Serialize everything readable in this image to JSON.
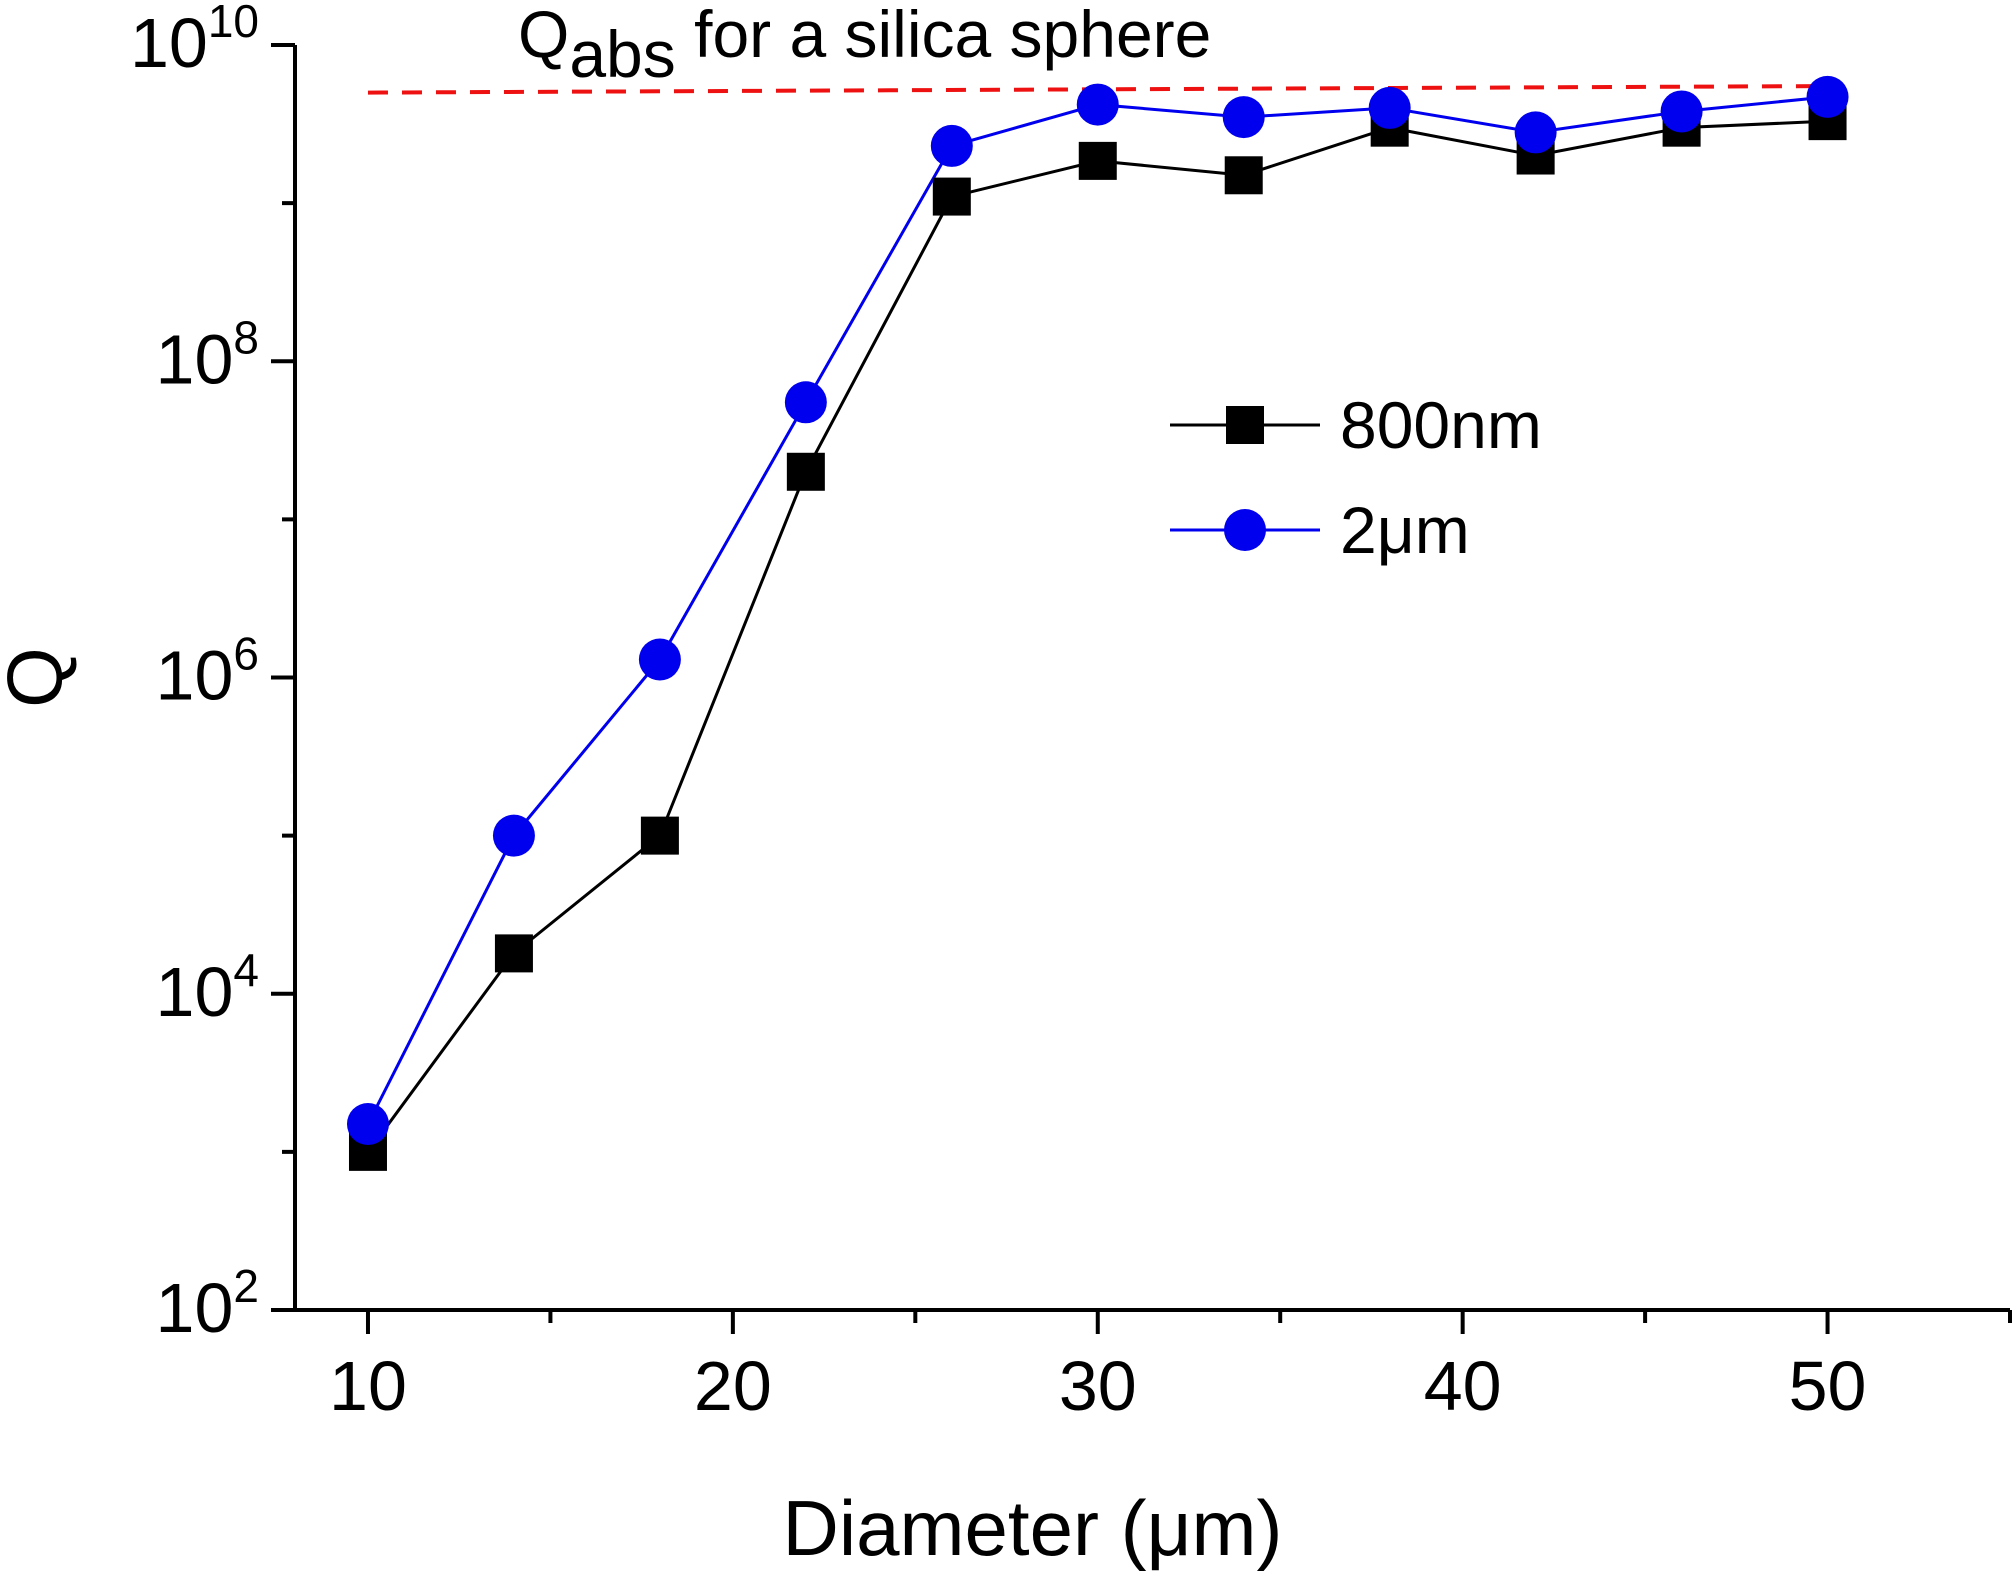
{
  "chart_data": {
    "type": "line",
    "title": "",
    "xlabel": "Diameter (μm)",
    "ylabel": "Q",
    "xlim": [
      8,
      55
    ],
    "ylim": [
      100,
      10000000000
    ],
    "y_scale": "log",
    "grid": false,
    "legend_position": "center-right",
    "x_ticks": [
      10,
      20,
      30,
      40,
      50
    ],
    "x_tick_labels": [
      "10",
      "20",
      "30",
      "40",
      "50"
    ],
    "x_minor_ticks": [
      15,
      25,
      35,
      45,
      55
    ],
    "y_ticks": [
      100,
      10000,
      1000000,
      100000000,
      10000000000
    ],
    "y_tick_labels": [
      {
        "base": "10",
        "exp": "2"
      },
      {
        "base": "10",
        "exp": "4"
      },
      {
        "base": "10",
        "exp": "6"
      },
      {
        "base": "10",
        "exp": "8"
      },
      {
        "base": "10",
        "exp": "10"
      }
    ],
    "series": [
      {
        "name": "800nm",
        "color": "#000000",
        "marker": "square",
        "x": [
          10,
          14,
          18,
          22,
          26,
          30,
          34,
          38,
          42,
          46,
          50
        ],
        "values": [
          1000,
          18000,
          100000,
          20000000,
          1100000000,
          1850000000,
          1500000000,
          3000000000,
          2000000000,
          3000000000,
          3300000000
        ]
      },
      {
        "name": "2μm",
        "color": "#0000ee",
        "marker": "circle",
        "x": [
          10,
          14,
          18,
          22,
          26,
          30,
          34,
          38,
          42,
          46,
          50
        ],
        "values": [
          1500,
          100000,
          1300000,
          55000000,
          2300000000,
          4200000000,
          3500000000,
          4000000000,
          2800000000,
          3800000000,
          4700000000
        ]
      }
    ],
    "reference_line": {
      "label_main": "Q",
      "label_sub": "abs",
      "label_rest": " for a silica sphere",
      "color": "#ee1111",
      "style": "dashed",
      "x": [
        10,
        50
      ],
      "values": [
        5000000000,
        5500000000
      ]
    }
  }
}
